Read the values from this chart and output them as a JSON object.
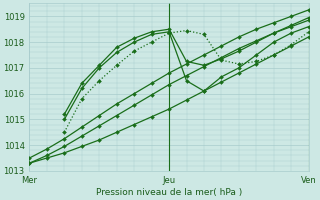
{
  "xlabel": "Pression niveau de la mer( hPa )",
  "ylim": [
    1013.0,
    1019.5
  ],
  "xlim": [
    0,
    48
  ],
  "yticks": [
    1013,
    1014,
    1015,
    1016,
    1017,
    1018,
    1019
  ],
  "xtick_positions": [
    0,
    24,
    48
  ],
  "xtick_labels": [
    "Mer",
    "Jeu",
    "Ven"
  ],
  "bg_color": "#cde8e4",
  "grid_color": "#a8cccc",
  "line_color": "#1a6e1a",
  "line_color_dark": "#1a5c1a",
  "series": [
    {
      "x": [
        0,
        3,
        6,
        9,
        12,
        15,
        18,
        21,
        24,
        27,
        30,
        33,
        36,
        39,
        42,
        45,
        48
      ],
      "y": [
        1013.3,
        1013.5,
        1013.7,
        1013.95,
        1014.2,
        1014.5,
        1014.8,
        1015.1,
        1015.4,
        1015.75,
        1016.1,
        1016.45,
        1016.8,
        1017.15,
        1017.5,
        1017.85,
        1018.2
      ],
      "style": "-",
      "marker": "D",
      "lw": 0.9,
      "ms": 2.0,
      "color": "#1a6e1a"
    },
    {
      "x": [
        0,
        3,
        6,
        9,
        12,
        15,
        18,
        21,
        24,
        27,
        30,
        33,
        36,
        39,
        42,
        45,
        48
      ],
      "y": [
        1013.3,
        1013.6,
        1013.95,
        1014.35,
        1014.75,
        1015.15,
        1015.55,
        1015.95,
        1016.35,
        1016.7,
        1017.05,
        1017.4,
        1017.75,
        1018.05,
        1018.35,
        1018.65,
        1018.95
      ],
      "style": "-",
      "marker": "D",
      "lw": 0.9,
      "ms": 2.0,
      "color": "#1a6e1a"
    },
    {
      "x": [
        0,
        3,
        6,
        9,
        12,
        15,
        18,
        21,
        24,
        27,
        30,
        33,
        36,
        39,
        42,
        45,
        48
      ],
      "y": [
        1013.5,
        1013.85,
        1014.25,
        1014.7,
        1015.15,
        1015.6,
        1016.0,
        1016.4,
        1016.8,
        1017.15,
        1017.5,
        1017.85,
        1018.2,
        1018.5,
        1018.75,
        1019.0,
        1019.25
      ],
      "style": "-",
      "marker": "D",
      "lw": 0.9,
      "ms": 2.0,
      "color": "#1a6e1a"
    },
    {
      "x": [
        6,
        9,
        12,
        15,
        18,
        21,
        24,
        27,
        30,
        33,
        36,
        39,
        42,
        45,
        48
      ],
      "y": [
        1014.5,
        1015.8,
        1016.5,
        1017.1,
        1017.65,
        1018.0,
        1018.35,
        1018.45,
        1018.3,
        1017.3,
        1017.15,
        1017.25,
        1017.5,
        1017.9,
        1018.4
      ],
      "style": ":",
      "marker": "D",
      "lw": 0.9,
      "ms": 2.0,
      "color": "#1a6e1a"
    },
    {
      "x": [
        6,
        9,
        12,
        15,
        18,
        21,
        24,
        27,
        30,
        33,
        36,
        39,
        42,
        45,
        48
      ],
      "y": [
        1015.0,
        1016.2,
        1017.0,
        1017.6,
        1018.0,
        1018.3,
        1018.4,
        1016.5,
        1016.1,
        1016.65,
        1017.0,
        1017.5,
        1018.0,
        1018.35,
        1018.6
      ],
      "style": "-",
      "marker": "D",
      "lw": 0.9,
      "ms": 2.0,
      "color": "#1a6e1a"
    },
    {
      "x": [
        6,
        9,
        12,
        15,
        18,
        21,
        24,
        27,
        30,
        33,
        36,
        39,
        42,
        45,
        48
      ],
      "y": [
        1015.2,
        1016.4,
        1017.1,
        1017.8,
        1018.15,
        1018.4,
        1018.5,
        1017.25,
        1017.1,
        1017.35,
        1017.65,
        1018.0,
        1018.35,
        1018.6,
        1018.85
      ],
      "style": "-",
      "marker": "D",
      "lw": 0.9,
      "ms": 2.0,
      "color": "#1a6e1a"
    }
  ],
  "vline_positions": [
    24,
    48
  ],
  "vline_color": "#1a6e1a",
  "figsize": [
    3.2,
    2.0
  ],
  "dpi": 100
}
